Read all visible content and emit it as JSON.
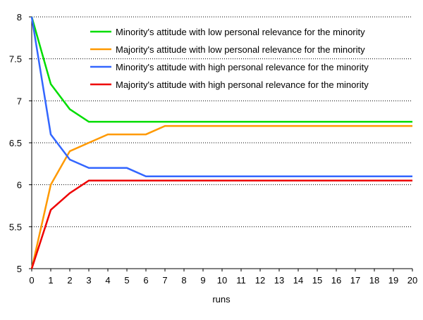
{
  "chart_data": {
    "type": "line",
    "title": "",
    "xlabel": "runs",
    "ylabel": "",
    "x": [
      0,
      1,
      2,
      3,
      4,
      5,
      6,
      7,
      8,
      9,
      10,
      11,
      12,
      13,
      14,
      15,
      16,
      17,
      18,
      19,
      20
    ],
    "xlim": [
      0,
      20
    ],
    "ylim": [
      5,
      8
    ],
    "yticks": [
      5,
      5.5,
      6,
      6.5,
      7,
      7.5,
      8
    ],
    "ytick_labels": [
      "5",
      "5.5",
      "6",
      "6.5",
      "7",
      "7.5",
      "8"
    ],
    "grid": "horizontal dotted",
    "legend_position": "top-right",
    "series": [
      {
        "name": "Minority's attitude with low personal relevance for the minority",
        "color": "#00dd00",
        "values": [
          8,
          7.2,
          6.9,
          6.75,
          6.75,
          6.75,
          6.75,
          6.75,
          6.75,
          6.75,
          6.75,
          6.75,
          6.75,
          6.75,
          6.75,
          6.75,
          6.75,
          6.75,
          6.75,
          6.75,
          6.75
        ]
      },
      {
        "name": "Majority's attitude with low personal relevance for the minority",
        "color": "#ff9900",
        "values": [
          5,
          6.0,
          6.4,
          6.5,
          6.6,
          6.6,
          6.6,
          6.7,
          6.7,
          6.7,
          6.7,
          6.7,
          6.7,
          6.7,
          6.7,
          6.7,
          6.7,
          6.7,
          6.7,
          6.7,
          6.7
        ]
      },
      {
        "name": "Minority's attitude with high personal relevance for the minority",
        "color": "#3366ff",
        "values": [
          8,
          6.6,
          6.3,
          6.2,
          6.2,
          6.2,
          6.1,
          6.1,
          6.1,
          6.1,
          6.1,
          6.1,
          6.1,
          6.1,
          6.1,
          6.1,
          6.1,
          6.1,
          6.1,
          6.1,
          6.1
        ]
      },
      {
        "name": "Majority's attitude with high personal relevance for the minority",
        "color": "#ee0000",
        "values": [
          5,
          5.7,
          5.9,
          6.05,
          6.05,
          6.05,
          6.05,
          6.05,
          6.05,
          6.05,
          6.05,
          6.05,
          6.05,
          6.05,
          6.05,
          6.05,
          6.05,
          6.05,
          6.05,
          6.05,
          6.05
        ]
      }
    ]
  }
}
